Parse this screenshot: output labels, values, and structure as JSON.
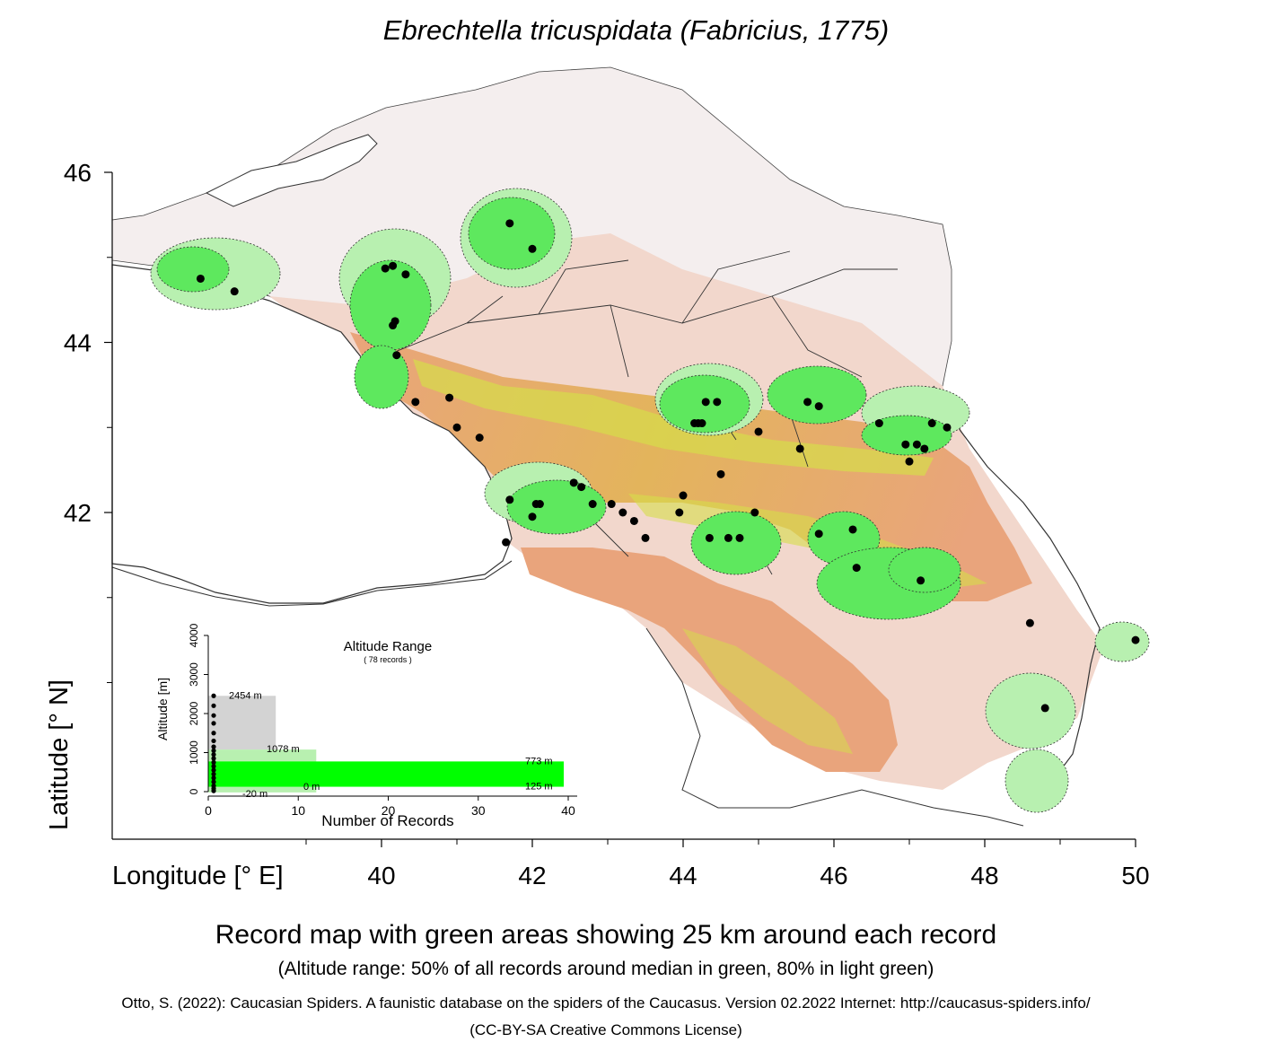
{
  "title": "Ebrechtella tricuspidata (Fabricius, 1775)",
  "axes": {
    "xlabel": "Longitude [° E]",
    "ylabel": "Latitude [° N]",
    "xticks": [
      "40",
      "42",
      "44",
      "46",
      "48",
      "50"
    ],
    "yticks": [
      "46",
      "44",
      "42"
    ]
  },
  "caption": "Record map with green areas showing 25 km around each record",
  "subcaption": "(Altitude range: 50% of all records around median in green, 80% in light green)",
  "citation": "Otto, S. (2022): Caucasian Spiders. A faunistic database on the spiders of the Caucasus. Version 02.2022 Internet: http://caucasus-spiders.info/",
  "license": "(CC-BY-SA Creative Commons License)",
  "colors": {
    "record": "#000000",
    "buffer": "#5ee85e",
    "buffer_light": "#b8f0b0",
    "lowland": "#e8a27a",
    "mid": "#e2c458",
    "high": "#c8e04a"
  },
  "chart_data": {
    "type": "scatter",
    "records": [
      [
        37.6,
        44.75
      ],
      [
        38.05,
        44.6
      ],
      [
        40.05,
        44.87
      ],
      [
        40.15,
        44.9
      ],
      [
        40.32,
        44.8
      ],
      [
        40.15,
        44.2
      ],
      [
        40.18,
        44.25
      ],
      [
        40.2,
        43.85
      ],
      [
        40.45,
        43.3
      ],
      [
        41.7,
        45.4
      ],
      [
        42.0,
        45.1
      ],
      [
        40.9,
        43.35
      ],
      [
        41.0,
        43.0
      ],
      [
        41.3,
        42.88
      ],
      [
        41.7,
        42.15
      ],
      [
        41.65,
        41.65
      ],
      [
        42.0,
        41.95
      ],
      [
        42.05,
        42.1
      ],
      [
        42.1,
        42.1
      ],
      [
        42.55,
        42.35
      ],
      [
        42.65,
        42.3
      ],
      [
        42.8,
        42.1
      ],
      [
        43.05,
        42.1
      ],
      [
        43.2,
        42.0
      ],
      [
        43.35,
        41.9
      ],
      [
        43.5,
        41.7
      ],
      [
        44.0,
        42.2
      ],
      [
        43.95,
        42.0
      ],
      [
        44.2,
        43.05
      ],
      [
        44.3,
        43.3
      ],
      [
        44.45,
        43.3
      ],
      [
        44.5,
        42.45
      ],
      [
        44.35,
        41.7
      ],
      [
        44.6,
        41.7
      ],
      [
        44.75,
        41.7
      ],
      [
        44.95,
        42.0
      ],
      [
        45.0,
        42.95
      ],
      [
        45.55,
        42.75
      ],
      [
        45.65,
        43.3
      ],
      [
        45.8,
        43.25
      ],
      [
        45.8,
        41.75
      ],
      [
        46.25,
        41.8
      ],
      [
        46.3,
        41.35
      ],
      [
        46.6,
        43.05
      ],
      [
        46.95,
        42.8
      ],
      [
        47.0,
        42.6
      ],
      [
        47.1,
        42.8
      ],
      [
        47.2,
        42.75
      ],
      [
        47.3,
        43.05
      ],
      [
        47.5,
        43.0
      ],
      [
        47.15,
        41.2
      ],
      [
        48.6,
        40.7
      ],
      [
        48.8,
        39.7
      ],
      [
        50.0,
        40.5
      ],
      [
        44.25,
        43.05
      ],
      [
        44.15,
        43.05
      ]
    ],
    "inset": {
      "title": "Altitude Range",
      "subtitle": "( 78 records )",
      "ylabel": "Altitude [m]",
      "xlabel": "Number of Records",
      "xticks": [
        "0",
        "10",
        "20",
        "30",
        "40"
      ],
      "yticks": [
        "0",
        "1000",
        "2000",
        "3000",
        "4000"
      ],
      "xlim": [
        0,
        40
      ],
      "ylim": [
        0,
        4000
      ],
      "range80": {
        "min": -20,
        "max": 1078,
        "label_min": "-20  m",
        "label_max": "1078  m"
      },
      "range50": {
        "min": 125,
        "max": 773,
        "label_min": "125  m",
        "label_max": "773  m"
      },
      "max_all": {
        "value": 2454,
        "label": "2454  m"
      },
      "zero_label": "0  m"
    }
  }
}
